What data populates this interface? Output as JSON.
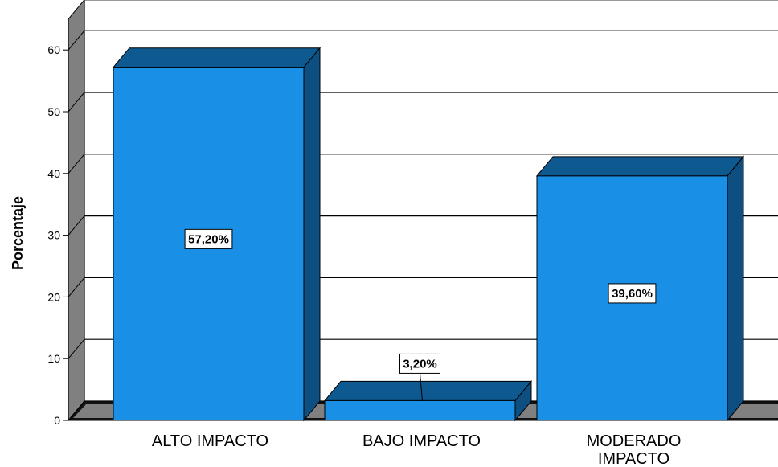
{
  "chart_data": {
    "type": "bar",
    "categories": [
      "ALTO IMPACTO",
      "BAJO IMPACTO",
      "MODERADO IMPACTO"
    ],
    "category_lines": [
      [
        "ALTO IMPACTO"
      ],
      [
        "BAJO IMPACTO"
      ],
      [
        "MODERADO",
        "IMPACTO"
      ]
    ],
    "values": [
      57.2,
      3.2,
      39.6
    ],
    "data_labels": [
      "57,20%",
      "3,20%",
      "39,60%"
    ],
    "title": "",
    "xlabel": "",
    "ylabel": "Porcentaje",
    "ylim": [
      0,
      65
    ],
    "yticks": [
      0,
      10,
      20,
      30,
      40,
      50,
      60
    ],
    "grid": true,
    "style": "3d",
    "colors": {
      "bar_front": "#1a8fe6",
      "bar_top": "#0e5a90",
      "bar_side": "#0c4f80",
      "wall": "#808080",
      "floor": "#111111",
      "gridline": "#000000"
    }
  }
}
